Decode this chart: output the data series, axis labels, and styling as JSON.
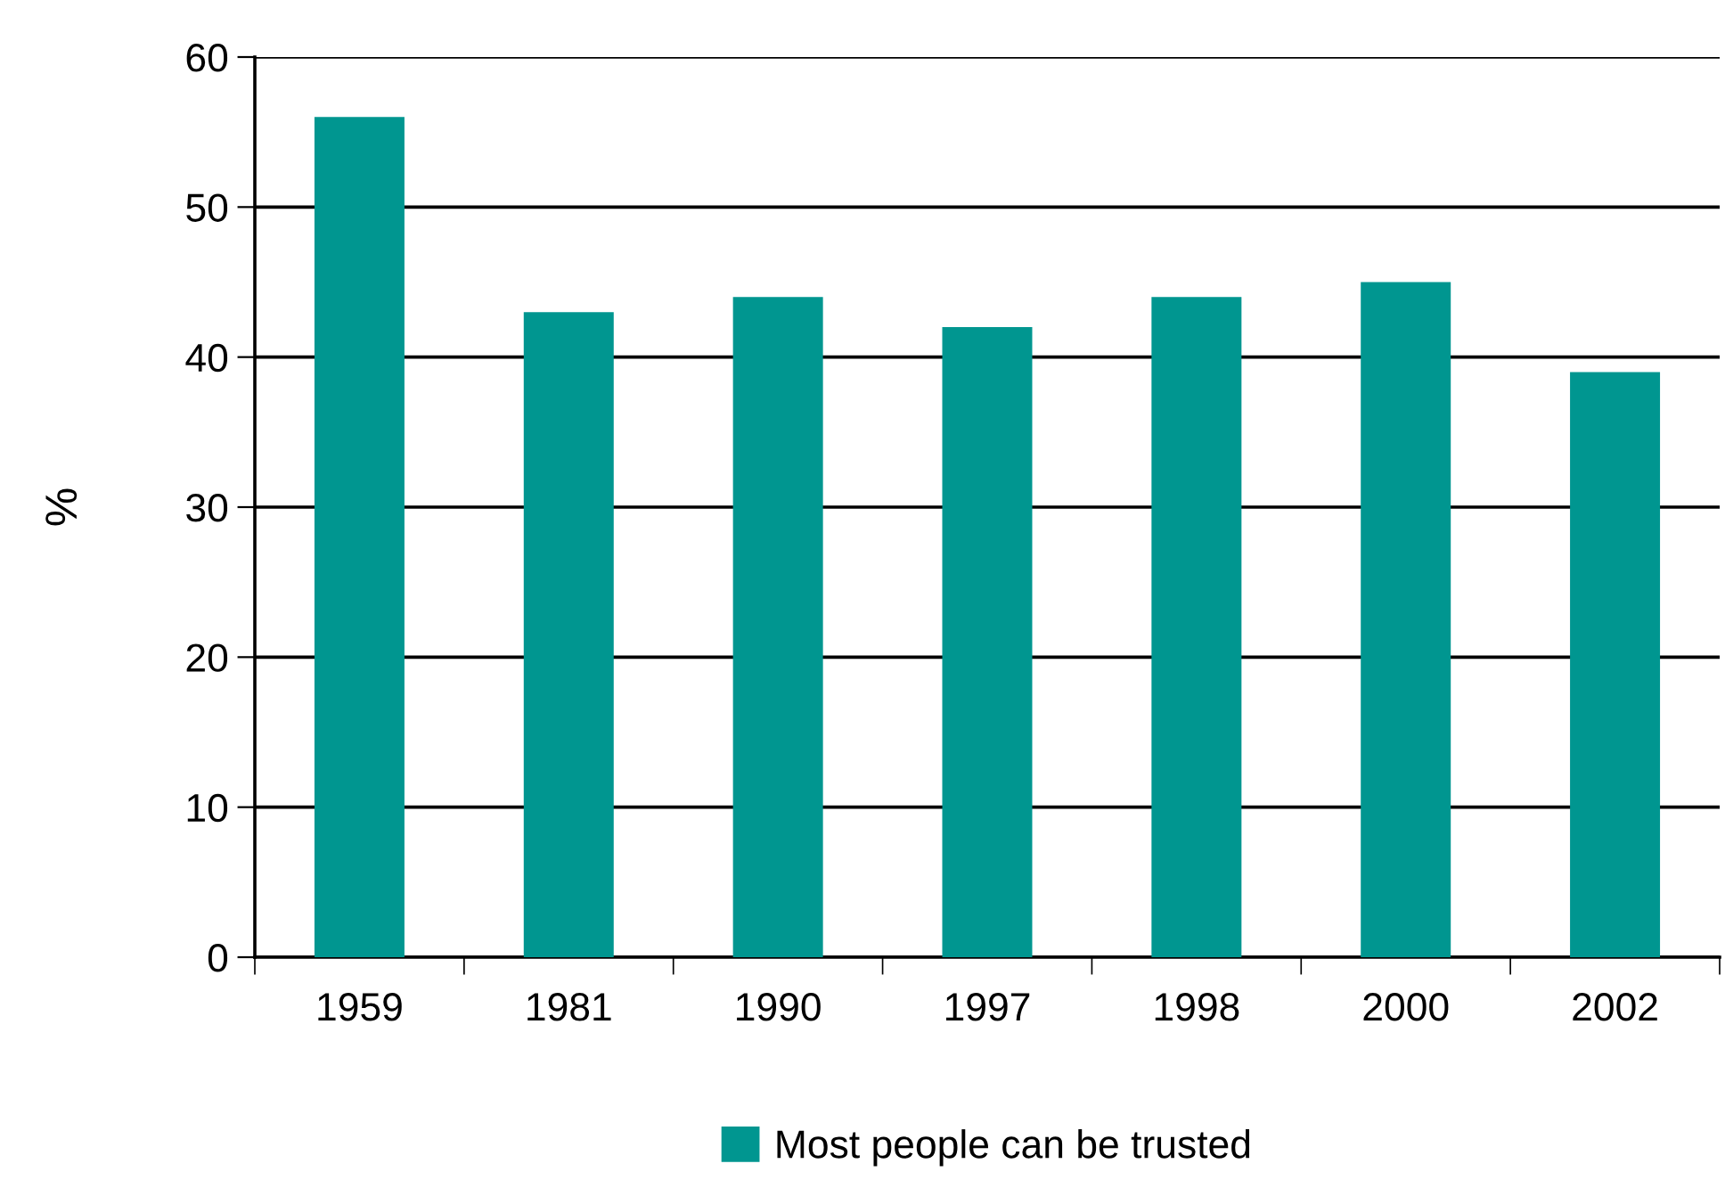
{
  "chart_data": {
    "type": "bar",
    "ylabel": "%",
    "categories": [
      "1959",
      "1981",
      "1990",
      "1997",
      "1998",
      "2000",
      "2002"
    ],
    "series": [
      {
        "name": "Most people can be trusted",
        "color": "#009690",
        "values": [
          56,
          43,
          44,
          42,
          44,
          45,
          39
        ]
      }
    ],
    "ylim": [
      0,
      60
    ],
    "yticks": [
      0,
      10,
      20,
      30,
      40,
      50,
      60
    ],
    "grid": "y",
    "legend": "bottom"
  }
}
